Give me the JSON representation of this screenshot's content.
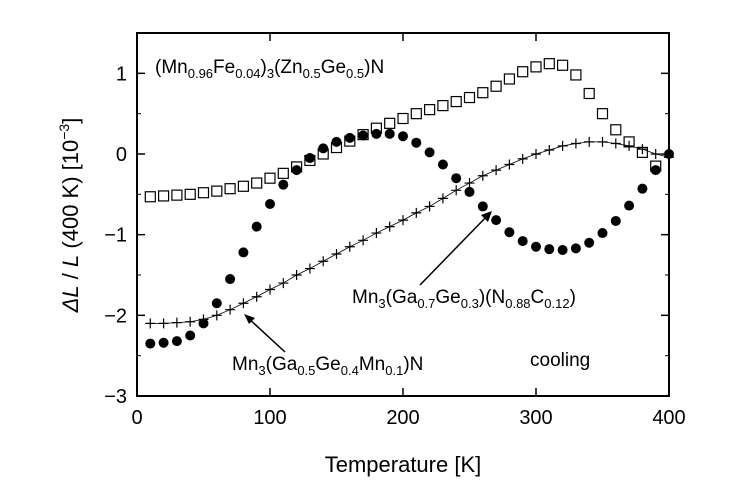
{
  "chart_data": {
    "type": "scatter",
    "xlabel": {
      "main": "Temperature",
      "unit": "[K]"
    },
    "ylabel": {
      "delta": "Δ",
      "L": "L",
      "slash": " / ",
      "L2": "L",
      "ref": " (400 K) [10",
      "exp": "−3",
      "close": "]"
    },
    "xlim": [
      0,
      400
    ],
    "ylim": [
      -3,
      1.5
    ],
    "xticks": [
      0,
      100,
      200,
      300,
      400
    ],
    "yticks": [
      -3,
      -2,
      -1,
      0,
      1
    ],
    "grid": false,
    "annotations": {
      "fe": {
        "pre": "(Mn",
        "sub1": "0.96",
        "mid1": "Fe",
        "sub2": "0.04",
        "mid2": ")",
        "sub3": "3",
        "mid3": "(Zn",
        "sub4": "0.5",
        "mid4": "Ge",
        "sub5": "0.5",
        "post": ")N"
      },
      "cn": {
        "pre": "Mn",
        "sub1": "3",
        "mid1": "(Ga",
        "sub2": "0.7",
        "mid2": "Ge",
        "sub3": "0.3",
        "mid3": ")(N",
        "sub4": "0.88",
        "mid4": "C",
        "sub5": "0.12",
        "post": ")"
      },
      "mn": {
        "pre": "Mn",
        "sub1": "3",
        "mid1": "(Ga",
        "sub2": "0.5",
        "mid2": "Ge",
        "sub3": "0.4",
        "mid3": "Mn",
        "sub4": "0.1",
        "post": ")N"
      },
      "cooling": "cooling"
    },
    "series": [
      {
        "marker": "open-square",
        "x": [
          10,
          20,
          30,
          40,
          50,
          60,
          70,
          80,
          90,
          100,
          110,
          120,
          130,
          140,
          150,
          160,
          170,
          180,
          190,
          200,
          210,
          220,
          230,
          240,
          250,
          260,
          270,
          280,
          290,
          300,
          310,
          320,
          330,
          340,
          350,
          360,
          370,
          380,
          390
        ],
        "y": [
          -0.53,
          -0.52,
          -0.51,
          -0.5,
          -0.48,
          -0.46,
          -0.43,
          -0.4,
          -0.36,
          -0.3,
          -0.24,
          -0.16,
          -0.08,
          0.0,
          0.08,
          0.16,
          0.24,
          0.32,
          0.38,
          0.44,
          0.5,
          0.55,
          0.6,
          0.65,
          0.7,
          0.76,
          0.84,
          0.93,
          1.02,
          1.08,
          1.12,
          1.1,
          0.98,
          0.75,
          0.5,
          0.3,
          0.15,
          0.02,
          -0.15
        ]
      },
      {
        "marker": "filled-circle",
        "x": [
          10,
          20,
          30,
          40,
          50,
          60,
          70,
          80,
          90,
          100,
          110,
          120,
          130,
          140,
          150,
          160,
          170,
          180,
          190,
          200,
          210,
          220,
          230,
          240,
          250,
          260,
          270,
          280,
          290,
          300,
          310,
          320,
          330,
          340,
          350,
          360,
          370,
          380,
          390,
          400
        ],
        "y": [
          -2.35,
          -2.34,
          -2.32,
          -2.25,
          -2.1,
          -1.85,
          -1.55,
          -1.22,
          -0.9,
          -0.62,
          -0.38,
          -0.2,
          -0.05,
          0.07,
          0.15,
          0.2,
          0.23,
          0.25,
          0.25,
          0.22,
          0.14,
          0.02,
          -0.13,
          -0.3,
          -0.47,
          -0.65,
          -0.82,
          -0.97,
          -1.08,
          -1.15,
          -1.18,
          -1.19,
          -1.17,
          -1.1,
          -0.98,
          -0.83,
          -0.64,
          -0.43,
          -0.2,
          0.0
        ]
      },
      {
        "marker": "plus",
        "x": [
          10,
          20,
          30,
          40,
          50,
          60,
          70,
          80,
          90,
          100,
          110,
          120,
          130,
          140,
          150,
          160,
          170,
          180,
          190,
          200,
          210,
          220,
          230,
          240,
          250,
          260,
          270,
          280,
          290,
          300,
          310,
          320,
          330,
          340,
          350,
          360,
          370,
          380,
          390,
          400
        ],
        "y": [
          -2.1,
          -2.1,
          -2.09,
          -2.08,
          -2.05,
          -2.0,
          -1.93,
          -1.85,
          -1.77,
          -1.68,
          -1.6,
          -1.5,
          -1.42,
          -1.33,
          -1.24,
          -1.15,
          -1.07,
          -0.98,
          -0.9,
          -0.82,
          -0.73,
          -0.65,
          -0.55,
          -0.45,
          -0.36,
          -0.27,
          -0.2,
          -0.13,
          -0.06,
          0.0,
          0.05,
          0.1,
          0.13,
          0.15,
          0.15,
          0.13,
          0.1,
          0.06,
          0.0,
          -0.04
        ]
      }
    ]
  }
}
